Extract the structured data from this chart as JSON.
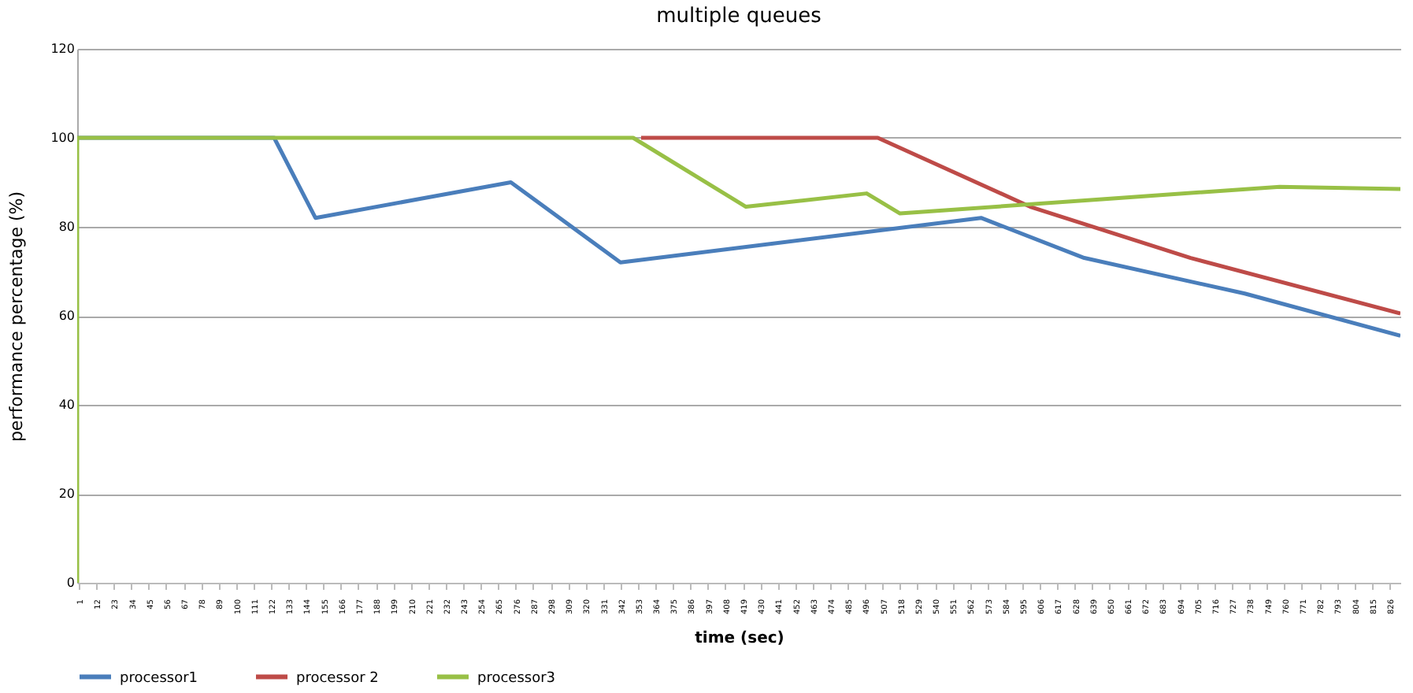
{
  "chart_data": {
    "type": "line",
    "title": "multiple queues",
    "xlabel": "time (sec)",
    "ylabel": "performance percentage (%)",
    "xlim": [
      0,
      833
    ],
    "xticks": [
      1,
      12,
      23,
      34,
      45,
      56,
      67,
      78,
      89,
      100,
      111,
      122,
      133,
      144,
      155,
      166,
      177,
      188,
      199,
      210,
      221,
      232,
      243,
      254,
      265,
      276,
      287,
      298,
      309,
      320,
      331,
      342,
      353,
      364,
      375,
      386,
      397,
      408,
      419,
      430,
      441,
      452,
      463,
      474,
      485,
      496,
      507,
      518,
      529,
      540,
      551,
      562,
      573,
      584,
      595,
      606,
      617,
      628,
      639,
      650,
      661,
      672,
      683,
      694,
      705,
      716,
      727,
      738,
      749,
      760,
      771,
      782,
      793,
      804,
      815,
      826
    ],
    "ylim": [
      0,
      120
    ],
    "yticks": [
      0,
      20,
      40,
      60,
      80,
      100,
      120
    ],
    "grid": "y",
    "legend": "bottom",
    "line_style": "solid",
    "marker": "none",
    "series": [
      {
        "name": "processor1",
        "color": "#4a7ebb",
        "x": [
          0,
          124,
          150,
          273,
          342,
          569,
          634,
          735,
          833
        ],
        "values": [
          100,
          100,
          82,
          90,
          72,
          82,
          73,
          65,
          55.5
        ]
      },
      {
        "name": "processor 2",
        "color": "#be4b48",
        "x": [
          355,
          504,
          600,
          701,
          833
        ],
        "values": [
          100,
          100,
          84.5,
          73,
          60.5
        ]
      },
      {
        "name": "processor3",
        "color": "#98c046",
        "x": [
          0,
          0,
          350,
          421,
          497,
          518,
          757,
          833
        ],
        "values": [
          0,
          100,
          100,
          84.5,
          87.5,
          83,
          89,
          88.5
        ]
      }
    ]
  }
}
